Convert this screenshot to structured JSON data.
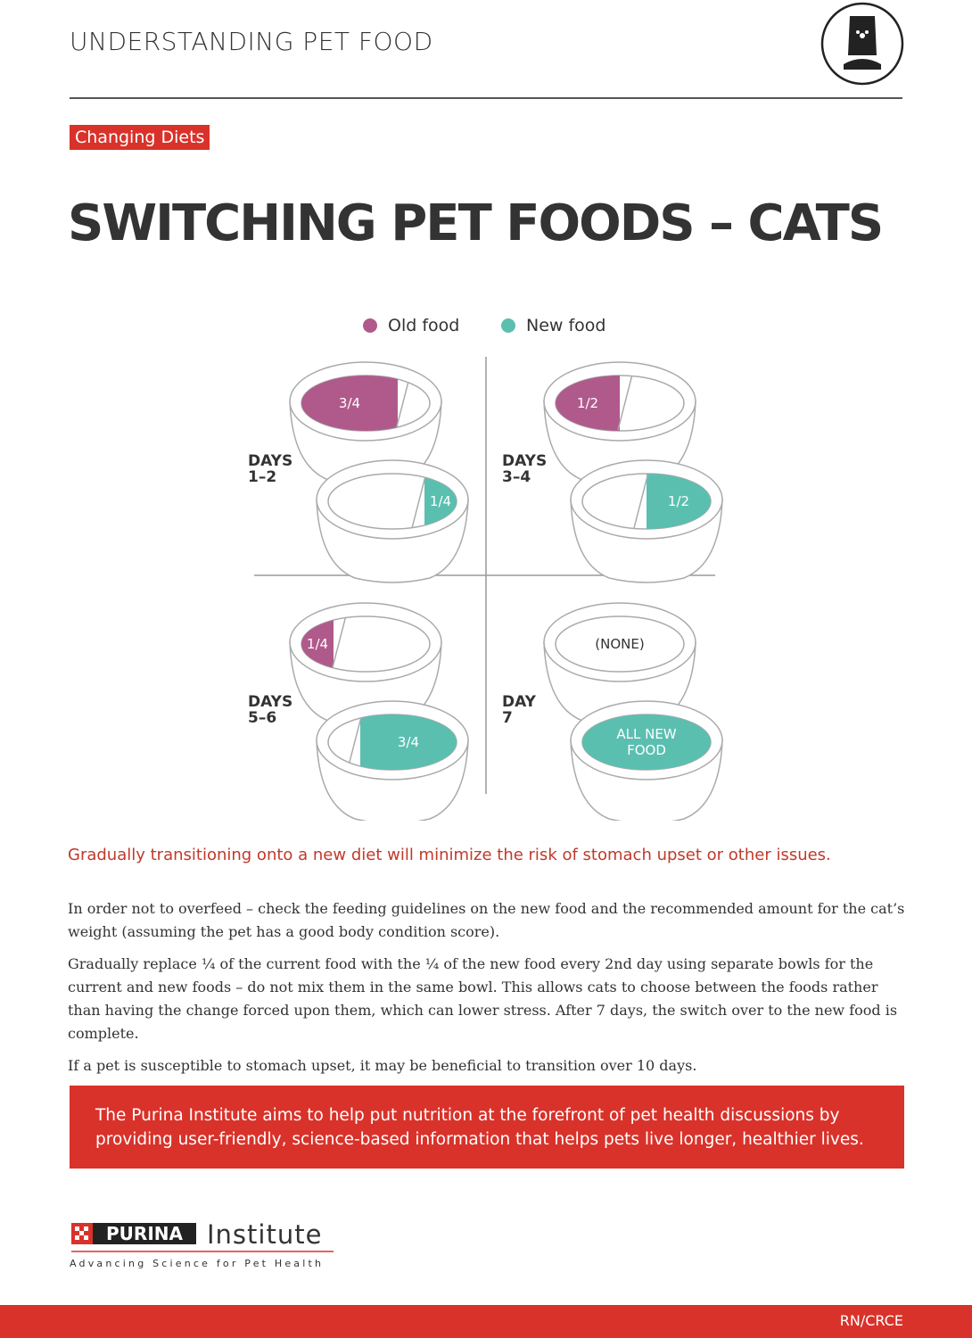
{
  "header": {
    "title": "UNDERSTANDING PET FOOD"
  },
  "tag": "Changing Diets",
  "title": "SWITCHING PET FOODS – CATS",
  "legend": [
    {
      "label": "Old food",
      "color": "#b05a8c"
    },
    {
      "label": "New food",
      "color": "#5bbfb0"
    }
  ],
  "stages": [
    {
      "label": [
        "DAYS",
        "1–2"
      ],
      "old": [
        "3/4"
      ],
      "new": [
        "1/4"
      ]
    },
    {
      "label": [
        "DAYS",
        "3–4"
      ],
      "old": [
        "1/2"
      ],
      "new": [
        "1/2"
      ]
    },
    {
      "label": [
        "DAYS",
        "5–6"
      ],
      "old": [
        "1/4"
      ],
      "new": [
        "3/4"
      ]
    },
    {
      "label": [
        "DAY",
        "7"
      ],
      "old": [
        "(NONE)"
      ],
      "new": [
        "ALL NEW",
        "FOOD"
      ]
    }
  ],
  "highlight": "Gradually transitioning onto a new diet will minimize the risk of stomach upset or other issues.",
  "paragraphs": [
    "In order not to overfeed – check the feeding guidelines on the new food and the recommended amount for the cat’s weight (assuming the pet has a good body condition score).",
    "Gradually replace ¼ of the current food with the ¼ of the new food every 2nd day using separate bowls for the current and new foods – do not mix them in the same bowl. This allows cats to choose between the foods rather than having the change forced upon them, which can lower stress. After 7 days, the switch over to the new food is complete.",
    "If a pet is susceptible to stomach upset, it may be beneficial to transition over 10 days."
  ],
  "banner": "The Purina Institute aims to help put nutrition at the forefront of pet health discussions by providing user-friendly, science-based information that helps pets live longer, healthier lives.",
  "logo": {
    "brand": "PURINA",
    "name": "Institute",
    "tagline": "Advancing Science for Pet Health"
  },
  "footer": "RN/CRCE"
}
